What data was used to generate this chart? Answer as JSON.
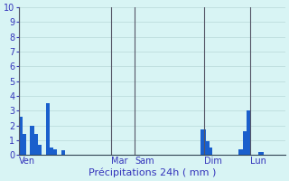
{
  "title": "Précipitations 24h ( mm )",
  "background_color": "#d8f4f4",
  "grid_color": "#b8d8d8",
  "bar_color": "#1a5fcc",
  "ylim": [
    0,
    10
  ],
  "yticks": [
    0,
    1,
    2,
    3,
    4,
    5,
    6,
    7,
    8,
    9,
    10
  ],
  "day_labels": [
    "Ven",
    "Mar",
    "Sam",
    "Dim",
    "Lun"
  ],
  "day_positions": [
    0,
    48,
    60,
    96,
    120
  ],
  "vline_positions": [
    0,
    48,
    60,
    96,
    120
  ],
  "n_bars": 144,
  "bar_values": [
    2.6,
    2.6,
    1.4,
    1.4,
    0.0,
    0.0,
    2.0,
    2.0,
    1.4,
    1.4,
    0.7,
    0.7,
    0.0,
    0.0,
    3.5,
    3.5,
    0.5,
    0.5,
    0.35,
    0.35,
    0.0,
    0.0,
    0.3,
    0.3,
    0.0,
    0.0,
    0.0,
    0.0,
    0.0,
    0.0,
    0.0,
    0.0,
    0.0,
    0.0,
    0.0,
    0.0,
    0.0,
    0.0,
    0.0,
    0.0,
    0.0,
    0.0,
    0.0,
    0.0,
    0.0,
    0.0,
    0.0,
    0.0,
    0.0,
    0.0,
    0.0,
    0.0,
    0.0,
    0.0,
    0.0,
    0.0,
    0.0,
    0.0,
    0.0,
    0.0,
    0.0,
    0.0,
    0.0,
    0.0,
    0.0,
    0.0,
    0.0,
    0.0,
    0.0,
    0.0,
    0.0,
    0.0,
    0.0,
    0.0,
    0.0,
    0.0,
    0.0,
    0.0,
    0.0,
    0.0,
    0.0,
    0.0,
    0.0,
    0.0,
    0.0,
    0.0,
    0.0,
    0.0,
    0.0,
    0.0,
    0.0,
    0.0,
    0.0,
    0.0,
    1.7,
    1.7,
    1.7,
    0.9,
    0.9,
    0.5,
    0.0,
    0.0,
    0.0,
    0.0,
    0.0,
    0.0,
    0.0,
    0.0,
    0.0,
    0.0,
    0.0,
    0.0,
    0.0,
    0.0,
    0.4,
    0.4,
    1.6,
    1.6,
    3.0,
    3.0,
    0.0,
    0.0,
    0.0,
    0.0,
    0.2,
    0.2,
    0.2,
    0.0,
    0.0,
    0.0,
    0.0,
    0.0,
    0.0,
    0.0,
    0.0,
    0.0,
    0.0,
    0.0
  ],
  "xlabel_color": "#3333bb",
  "tick_color": "#3333bb",
  "vline_color": "#555566",
  "spine_color": "#334455",
  "ylabel_fontsize": 7,
  "xlabel_fontsize": 8,
  "tick_fontsize": 7
}
